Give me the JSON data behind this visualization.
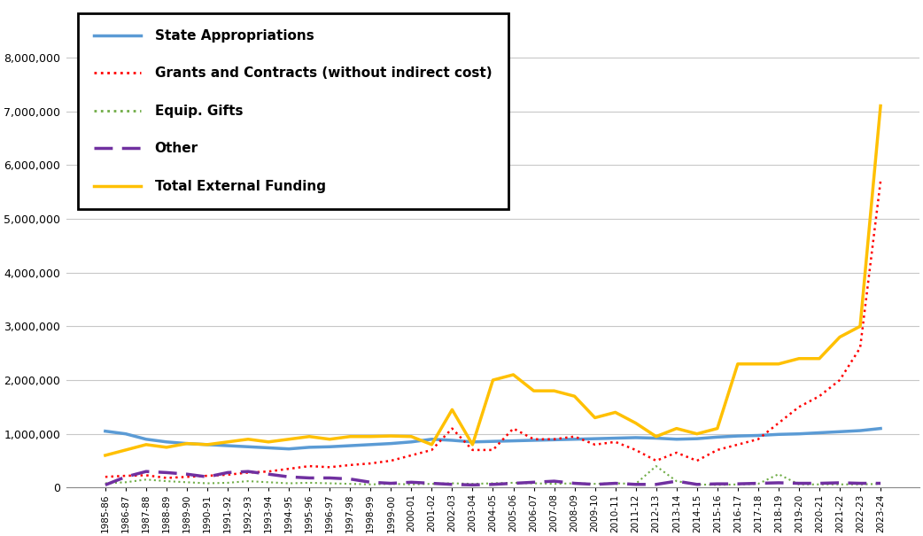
{
  "categories": [
    "1985-86",
    "1986-87",
    "1987-88",
    "1988-89",
    "1989-90",
    "1990-91",
    "1991-92",
    "1992-93",
    "1993-94",
    "1994-95",
    "1995-96",
    "1996-97",
    "1997-98",
    "1998-99",
    "1999-00",
    "2000-01",
    "2001-02",
    "2002-03",
    "2003-04",
    "2004-05",
    "2005-06",
    "2006-07",
    "2007-08",
    "2008-09",
    "2009-10",
    "2010-11",
    "2011-12",
    "2012-13",
    "2013-14",
    "2014-15",
    "2015-16",
    "2016-17",
    "2017-18",
    "2018-19",
    "2019-20",
    "2020-21",
    "2021-22",
    "2022-23",
    "2023-24"
  ],
  "state_appropriations": [
    1050000,
    1000000,
    900000,
    850000,
    820000,
    800000,
    780000,
    760000,
    740000,
    720000,
    750000,
    760000,
    780000,
    800000,
    820000,
    850000,
    900000,
    880000,
    850000,
    860000,
    870000,
    880000,
    890000,
    900000,
    910000,
    920000,
    930000,
    920000,
    900000,
    910000,
    940000,
    960000,
    970000,
    990000,
    1000000,
    1020000,
    1040000,
    1060000,
    1100000
  ],
  "grants_contracts": [
    200000,
    220000,
    230000,
    180000,
    200000,
    220000,
    240000,
    280000,
    300000,
    350000,
    400000,
    380000,
    420000,
    450000,
    500000,
    600000,
    700000,
    1100000,
    700000,
    700000,
    1100000,
    900000,
    900000,
    950000,
    800000,
    850000,
    700000,
    500000,
    650000,
    500000,
    700000,
    800000,
    900000,
    1200000,
    1500000,
    1700000,
    2000000,
    2600000,
    5700000
  ],
  "equip_gifts": [
    80000,
    100000,
    150000,
    120000,
    100000,
    80000,
    90000,
    120000,
    100000,
    80000,
    90000,
    80000,
    70000,
    60000,
    70000,
    60000,
    70000,
    80000,
    70000,
    80000,
    90000,
    80000,
    70000,
    80000,
    70000,
    80000,
    70000,
    400000,
    120000,
    60000,
    50000,
    60000,
    70000,
    250000,
    60000,
    60000,
    60000,
    60000,
    70000
  ],
  "other": [
    50000,
    200000,
    300000,
    280000,
    250000,
    200000,
    280000,
    300000,
    250000,
    200000,
    180000,
    180000,
    160000,
    100000,
    80000,
    100000,
    80000,
    60000,
    50000,
    60000,
    80000,
    100000,
    120000,
    80000,
    60000,
    80000,
    60000,
    60000,
    120000,
    60000,
    70000,
    70000,
    80000,
    90000,
    80000,
    80000,
    90000,
    80000,
    80000
  ],
  "total_external": [
    600000,
    700000,
    800000,
    750000,
    820000,
    800000,
    850000,
    900000,
    850000,
    900000,
    950000,
    900000,
    950000,
    950000,
    960000,
    950000,
    800000,
    1450000,
    800000,
    2000000,
    2100000,
    1800000,
    1800000,
    1700000,
    1300000,
    1400000,
    1200000,
    950000,
    1100000,
    1000000,
    1100000,
    2300000,
    2300000,
    2300000,
    2400000,
    2400000,
    2800000,
    3000000,
    7100000
  ],
  "state_color": "#5B9BD5",
  "grants_color": "#FF0000",
  "equip_color": "#70AD47",
  "other_color": "#7030A0",
  "total_color": "#FFC000",
  "background_color": "#FFFFFF",
  "grid_color": "#C8C8C8",
  "ylim": [
    0,
    9000000
  ],
  "yticks": [
    0,
    1000000,
    2000000,
    3000000,
    4000000,
    5000000,
    6000000,
    7000000,
    8000000
  ],
  "legend_labels": [
    "State Appropriations",
    "Grants and Contracts (without indirect cost)",
    "Equip. Gifts",
    "Other",
    "Total External Funding"
  ]
}
